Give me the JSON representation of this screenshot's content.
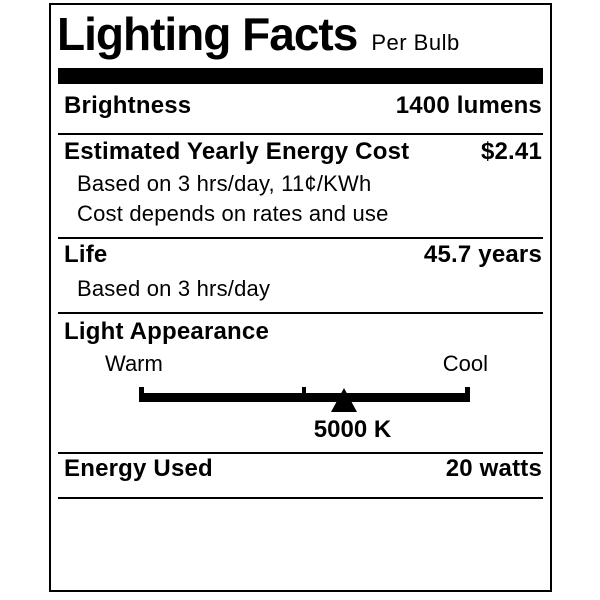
{
  "label": {
    "title": "Lighting Facts",
    "subtitle": "Per Bulb",
    "colors": {
      "ink": "#000000",
      "background": "#ffffff"
    },
    "rows": {
      "brightness": {
        "label": "Brightness",
        "value": "1400 lumens"
      },
      "energy_cost": {
        "label": "Estimated Yearly Energy Cost",
        "value": "$2.41",
        "notes": [
          "Based on 3 hrs/day, 11¢/KWh",
          "Cost depends on rates and use"
        ]
      },
      "life": {
        "label": "Life",
        "value": "45.7 years",
        "notes": [
          "Based on 3 hrs/day"
        ]
      },
      "light_appearance": {
        "label": "Light Appearance",
        "warm_label": "Warm",
        "cool_label": "Cool",
        "kelvin": "5000 K",
        "marker_position_pct": 62
      },
      "energy_used": {
        "label": "Energy Used",
        "value": "20 watts"
      }
    }
  }
}
